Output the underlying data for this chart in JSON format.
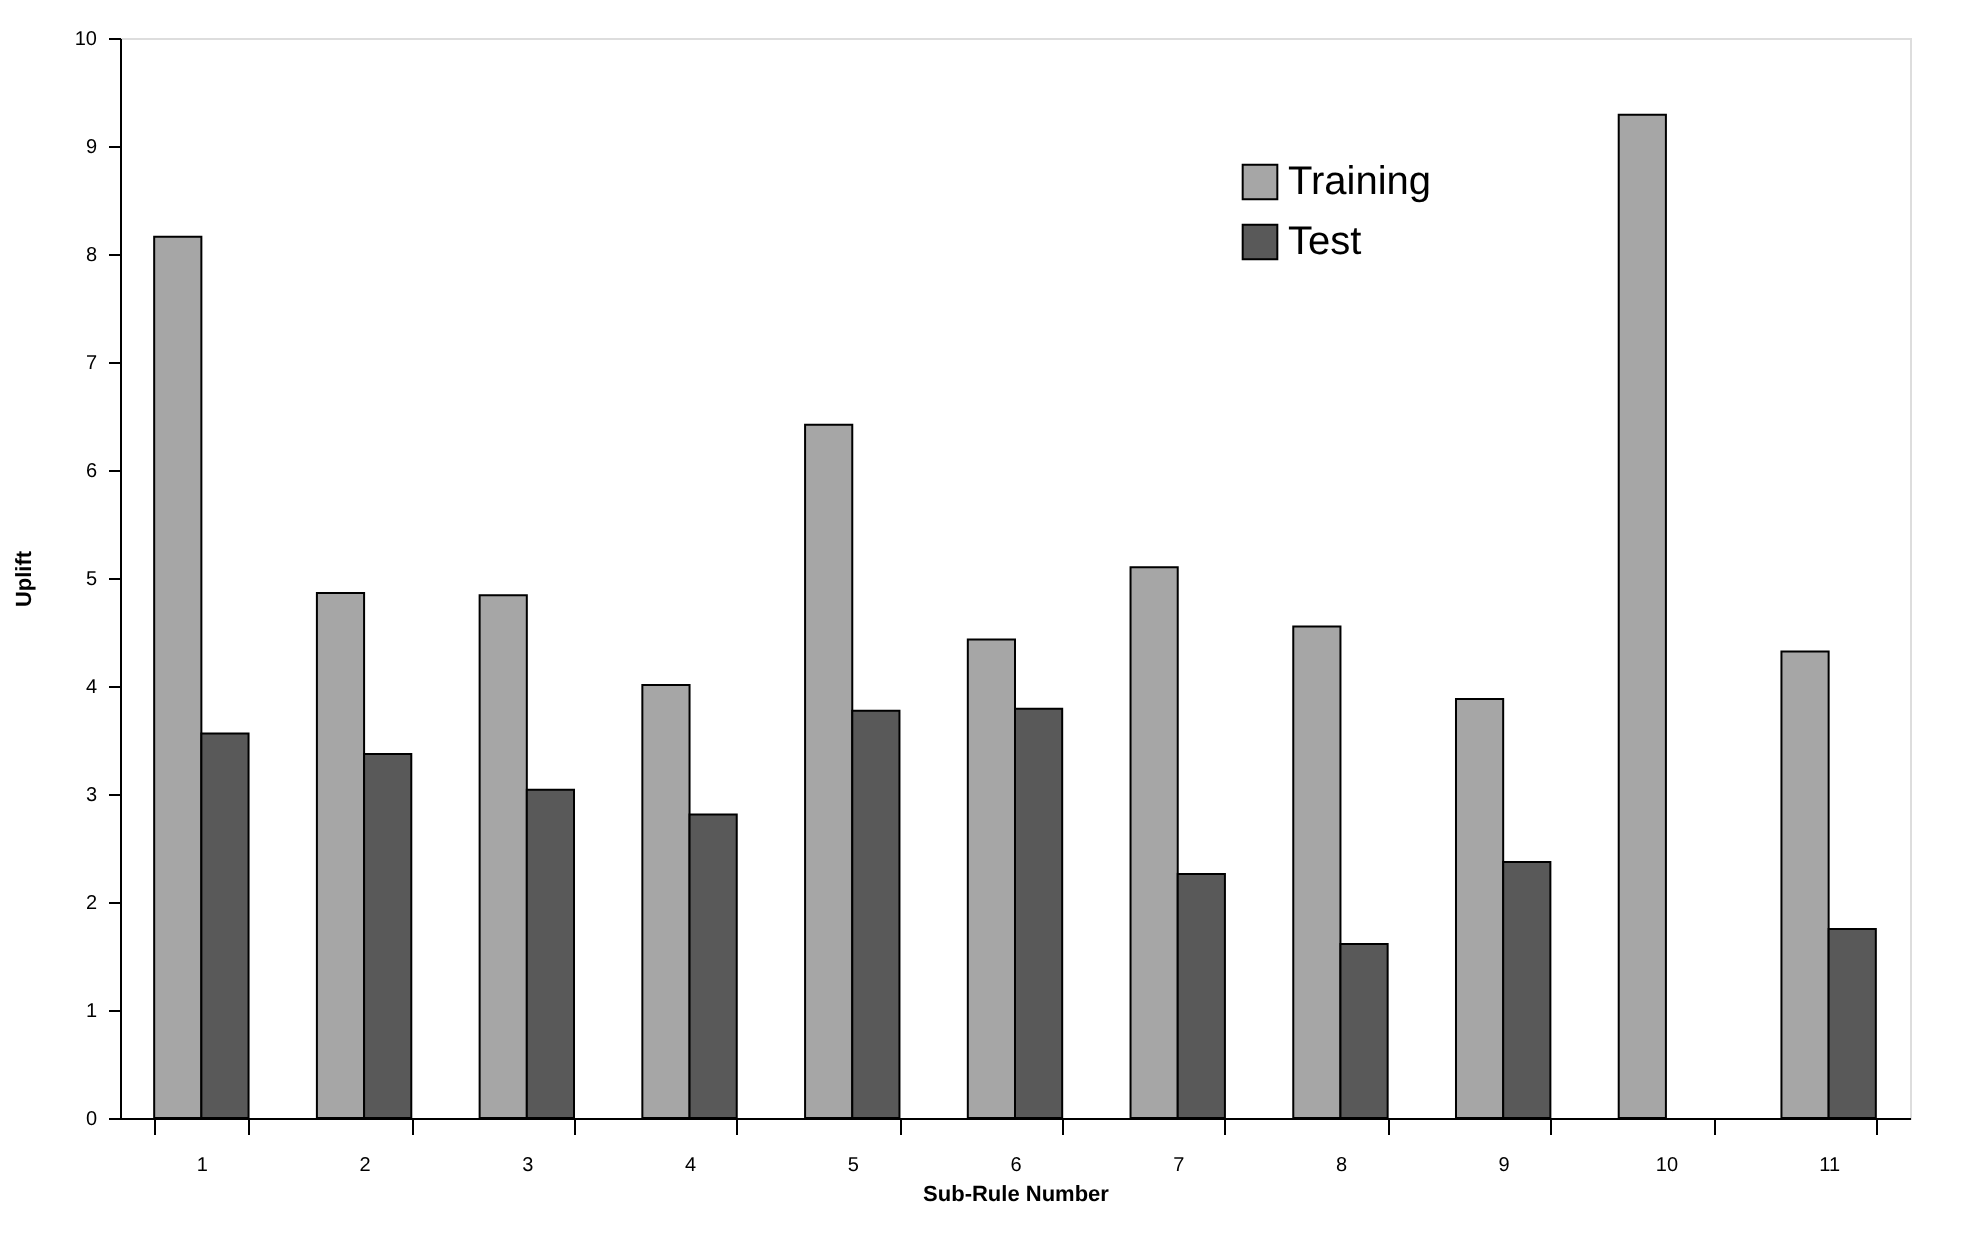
{
  "chart_data": {
    "type": "bar",
    "xlabel": "Sub-Rule Number",
    "ylabel": "Uplift",
    "categories": [
      "1",
      "2",
      "3",
      "4",
      "5",
      "6",
      "7",
      "8",
      "9",
      "10",
      "11"
    ],
    "series": [
      {
        "name": "Training",
        "color": "#a6a6a6",
        "values": [
          8.16,
          4.86,
          4.84,
          4.01,
          6.42,
          4.43,
          5.1,
          4.55,
          3.88,
          9.29,
          4.32
        ]
      },
      {
        "name": "Test",
        "color": "#595959",
        "values": [
          3.56,
          3.37,
          3.04,
          2.81,
          3.77,
          3.79,
          2.26,
          1.61,
          2.37,
          null,
          1.75
        ]
      }
    ],
    "ylim": [
      0,
      10
    ],
    "yticks": [
      0,
      1,
      2,
      3,
      4,
      5,
      6,
      7,
      8,
      9,
      10
    ],
    "grid": false,
    "legend": "top right"
  }
}
